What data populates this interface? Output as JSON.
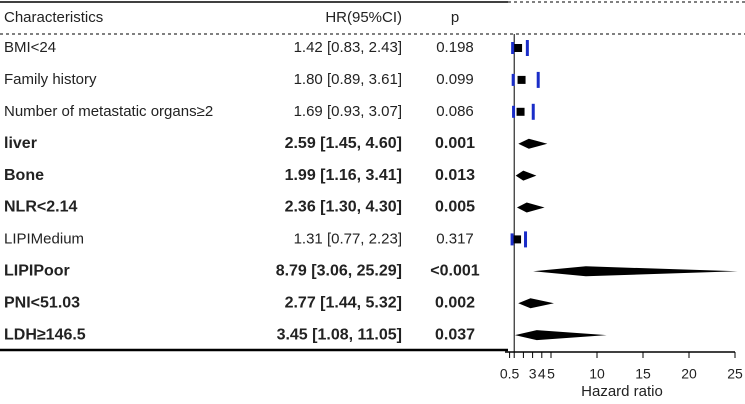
{
  "chart_data": {
    "type": "forest",
    "columns": [
      "Characteristics",
      "HR(95%CI)",
      "p"
    ],
    "categories": [
      "BMI<24",
      "Family history",
      "Number of metastatic organs≥2",
      "liver",
      "Bone",
      "NLR<2.14",
      "LIPIMedium",
      "LIPIPoor",
      "PNI<51.03",
      "LDH≥146.5"
    ],
    "values": [
      1.42,
      1.8,
      1.69,
      2.59,
      1.99,
      2.36,
      1.31,
      8.79,
      2.77,
      3.45
    ],
    "lower": [
      0.83,
      0.89,
      0.93,
      1.45,
      1.16,
      1.3,
      0.77,
      3.06,
      1.44,
      1.08
    ],
    "upper": [
      2.43,
      3.61,
      3.07,
      4.6,
      3.41,
      4.3,
      2.23,
      25.29,
      5.32,
      11.05
    ],
    "value_labels": [
      "1.42 [0.83, 2.43]",
      "1.80 [0.89, 3.61]",
      "1.69 [0.93, 3.07]",
      "2.59 [1.45, 4.60]",
      "1.99 [1.16, 3.41]",
      "2.36 [1.30, 4.30]",
      "1.31 [0.77, 2.23]",
      "8.79 [3.06, 25.29]",
      "2.77 [1.44, 5.32]",
      "3.45 [1.08, 11.05]"
    ],
    "p_labels": [
      "0.198",
      "0.099",
      "0.086",
      "0.001",
      "0.013",
      "0.005",
      "0.317",
      "<0.001",
      "0.002",
      "0.037"
    ],
    "bold": [
      false,
      false,
      false,
      true,
      true,
      true,
      false,
      true,
      true,
      true
    ],
    "xlim": [
      0,
      25
    ],
    "xticks": [
      0.5,
      3,
      4,
      5,
      10,
      15,
      20,
      25
    ],
    "xminor": [
      1,
      2
    ],
    "ref_line": 1,
    "xlabel": "Hazard ratio",
    "colors": {
      "mark": "#000000",
      "ci": "#1a2dc8"
    }
  }
}
